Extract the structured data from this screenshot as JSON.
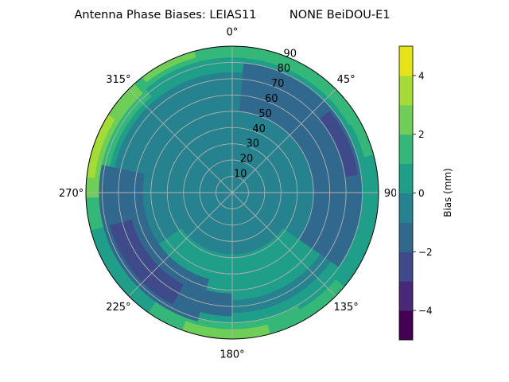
{
  "chart_data": {
    "type": "polar-contour",
    "title": "Antenna Phase Biases: LEIAS11         NONE BeiDOU-E1",
    "angular_axis": {
      "direction": "clockwise",
      "zero": "north",
      "tick_labels": [
        "0°",
        "45°",
        "90°",
        "135°",
        "180°",
        "225°",
        "270°",
        "315°"
      ],
      "ticks": [
        0,
        45,
        90,
        135,
        180,
        225,
        270,
        315
      ]
    },
    "radial_axis": {
      "range": [
        0,
        90
      ],
      "ticks": [
        10,
        20,
        30,
        40,
        50,
        60,
        70,
        80,
        90
      ],
      "tick_labels": [
        "10",
        "20",
        "30",
        "40",
        "50",
        "60",
        "70",
        "80",
        "90"
      ],
      "label_angle": 22.5
    },
    "grid": true,
    "colorbar": {
      "label": "Bias (mm)",
      "range": [
        -5,
        5
      ],
      "levels": [
        -5,
        -4,
        -3,
        -2,
        -1,
        0,
        1,
        2,
        3,
        4,
        5
      ],
      "ticks": [
        -4,
        -2,
        0,
        2,
        4
      ],
      "tick_labels": [
        "−4",
        "−2",
        "0",
        "2",
        "4"
      ],
      "colors": [
        "#440154",
        "#482878",
        "#3e4a89",
        "#31688e",
        "#26828e",
        "#1f9e89",
        "#35b779",
        "#6ece58",
        "#a5db36",
        "#e5e419"
      ]
    },
    "background_level": [
      -1,
      0
    ],
    "regions": [
      {
        "level": [
          0,
          1
        ],
        "azimuth": [
          0,
          360
        ],
        "zenith": [
          74,
          90
        ]
      },
      {
        "level": [
          0,
          1
        ],
        "azimuth": [
          125,
          235
        ],
        "zenith": [
          38,
          66
        ]
      },
      {
        "level": [
          1,
          2
        ],
        "azimuth": [
          -60,
          60
        ],
        "zenith": [
          83,
          90
        ]
      },
      {
        "level": [
          1,
          2
        ],
        "azimuth": [
          150,
          215
        ],
        "zenith": [
          80,
          90
        ]
      },
      {
        "level": [
          1,
          2
        ],
        "azimuth": [
          255,
          320
        ],
        "zenith": [
          77,
          90
        ]
      },
      {
        "level": [
          1,
          2
        ],
        "azimuth": [
          40,
          75
        ],
        "zenith": [
          84,
          90
        ]
      },
      {
        "level": [
          1,
          2
        ],
        "azimuth": [
          130,
          150
        ],
        "zenith": [
          83,
          90
        ]
      },
      {
        "level": [
          2,
          3
        ],
        "azimuth": [
          165,
          200
        ],
        "zenith": [
          84,
          90
        ]
      },
      {
        "level": [
          2,
          3
        ],
        "azimuth": [
          268,
          318
        ],
        "zenith": [
          82,
          90
        ]
      },
      {
        "level": [
          2,
          3
        ],
        "azimuth": [
          322,
          345
        ],
        "zenith": [
          86,
          90
        ]
      },
      {
        "level": [
          3,
          4
        ],
        "azimuth": [
          276,
          302
        ],
        "zenith": [
          85,
          90
        ]
      },
      {
        "level": [
          -2,
          -1
        ],
        "azimuth": [
          5,
          125
        ],
        "zenith": [
          50,
          80
        ]
      },
      {
        "level": [
          -2,
          -1
        ],
        "azimuth": [
          195,
          282
        ],
        "zenith": [
          55,
          82
        ]
      },
      {
        "level": [
          -2,
          -1
        ],
        "azimuth": [
          180,
          200
        ],
        "zenith": [
          62,
          76
        ]
      },
      {
        "level": [
          -3,
          -2
        ],
        "azimuth": [
          50,
          82
        ],
        "zenith": [
          70,
          78
        ]
      },
      {
        "level": [
          -3,
          -2
        ],
        "azimuth": [
          208,
          255
        ],
        "zenith": [
          64,
          78
        ]
      }
    ]
  }
}
